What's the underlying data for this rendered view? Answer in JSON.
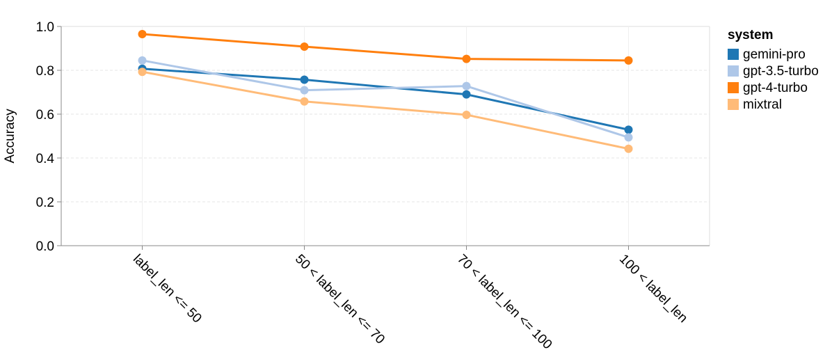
{
  "chart_data": {
    "type": "line",
    "categories": [
      "label_len <= 50",
      "50 < label_len <= 70",
      "70 < label_len <= 100",
      "100 < label_len"
    ],
    "ylabel": "Accuracy",
    "xlabel": "",
    "ylim": [
      0,
      1
    ],
    "yticks": [
      "0.0",
      "0.2",
      "0.4",
      "0.6",
      "0.8",
      "1.0"
    ],
    "grid": true,
    "legend": {
      "title": "system",
      "placement": "right"
    },
    "series": [
      {
        "name": "gemini-pro",
        "color": "#1f77b4",
        "values": [
          0.807,
          0.757,
          0.69,
          0.529
        ]
      },
      {
        "name": "gpt-3.5-turbo",
        "color": "#aec7e8",
        "values": [
          0.845,
          0.709,
          0.728,
          0.494
        ]
      },
      {
        "name": "gpt-4-turbo",
        "color": "#ff7f0e",
        "values": [
          0.965,
          0.908,
          0.852,
          0.845
        ]
      },
      {
        "name": "mixtral",
        "color": "#ffbb78",
        "values": [
          0.793,
          0.658,
          0.597,
          0.442
        ]
      }
    ]
  }
}
